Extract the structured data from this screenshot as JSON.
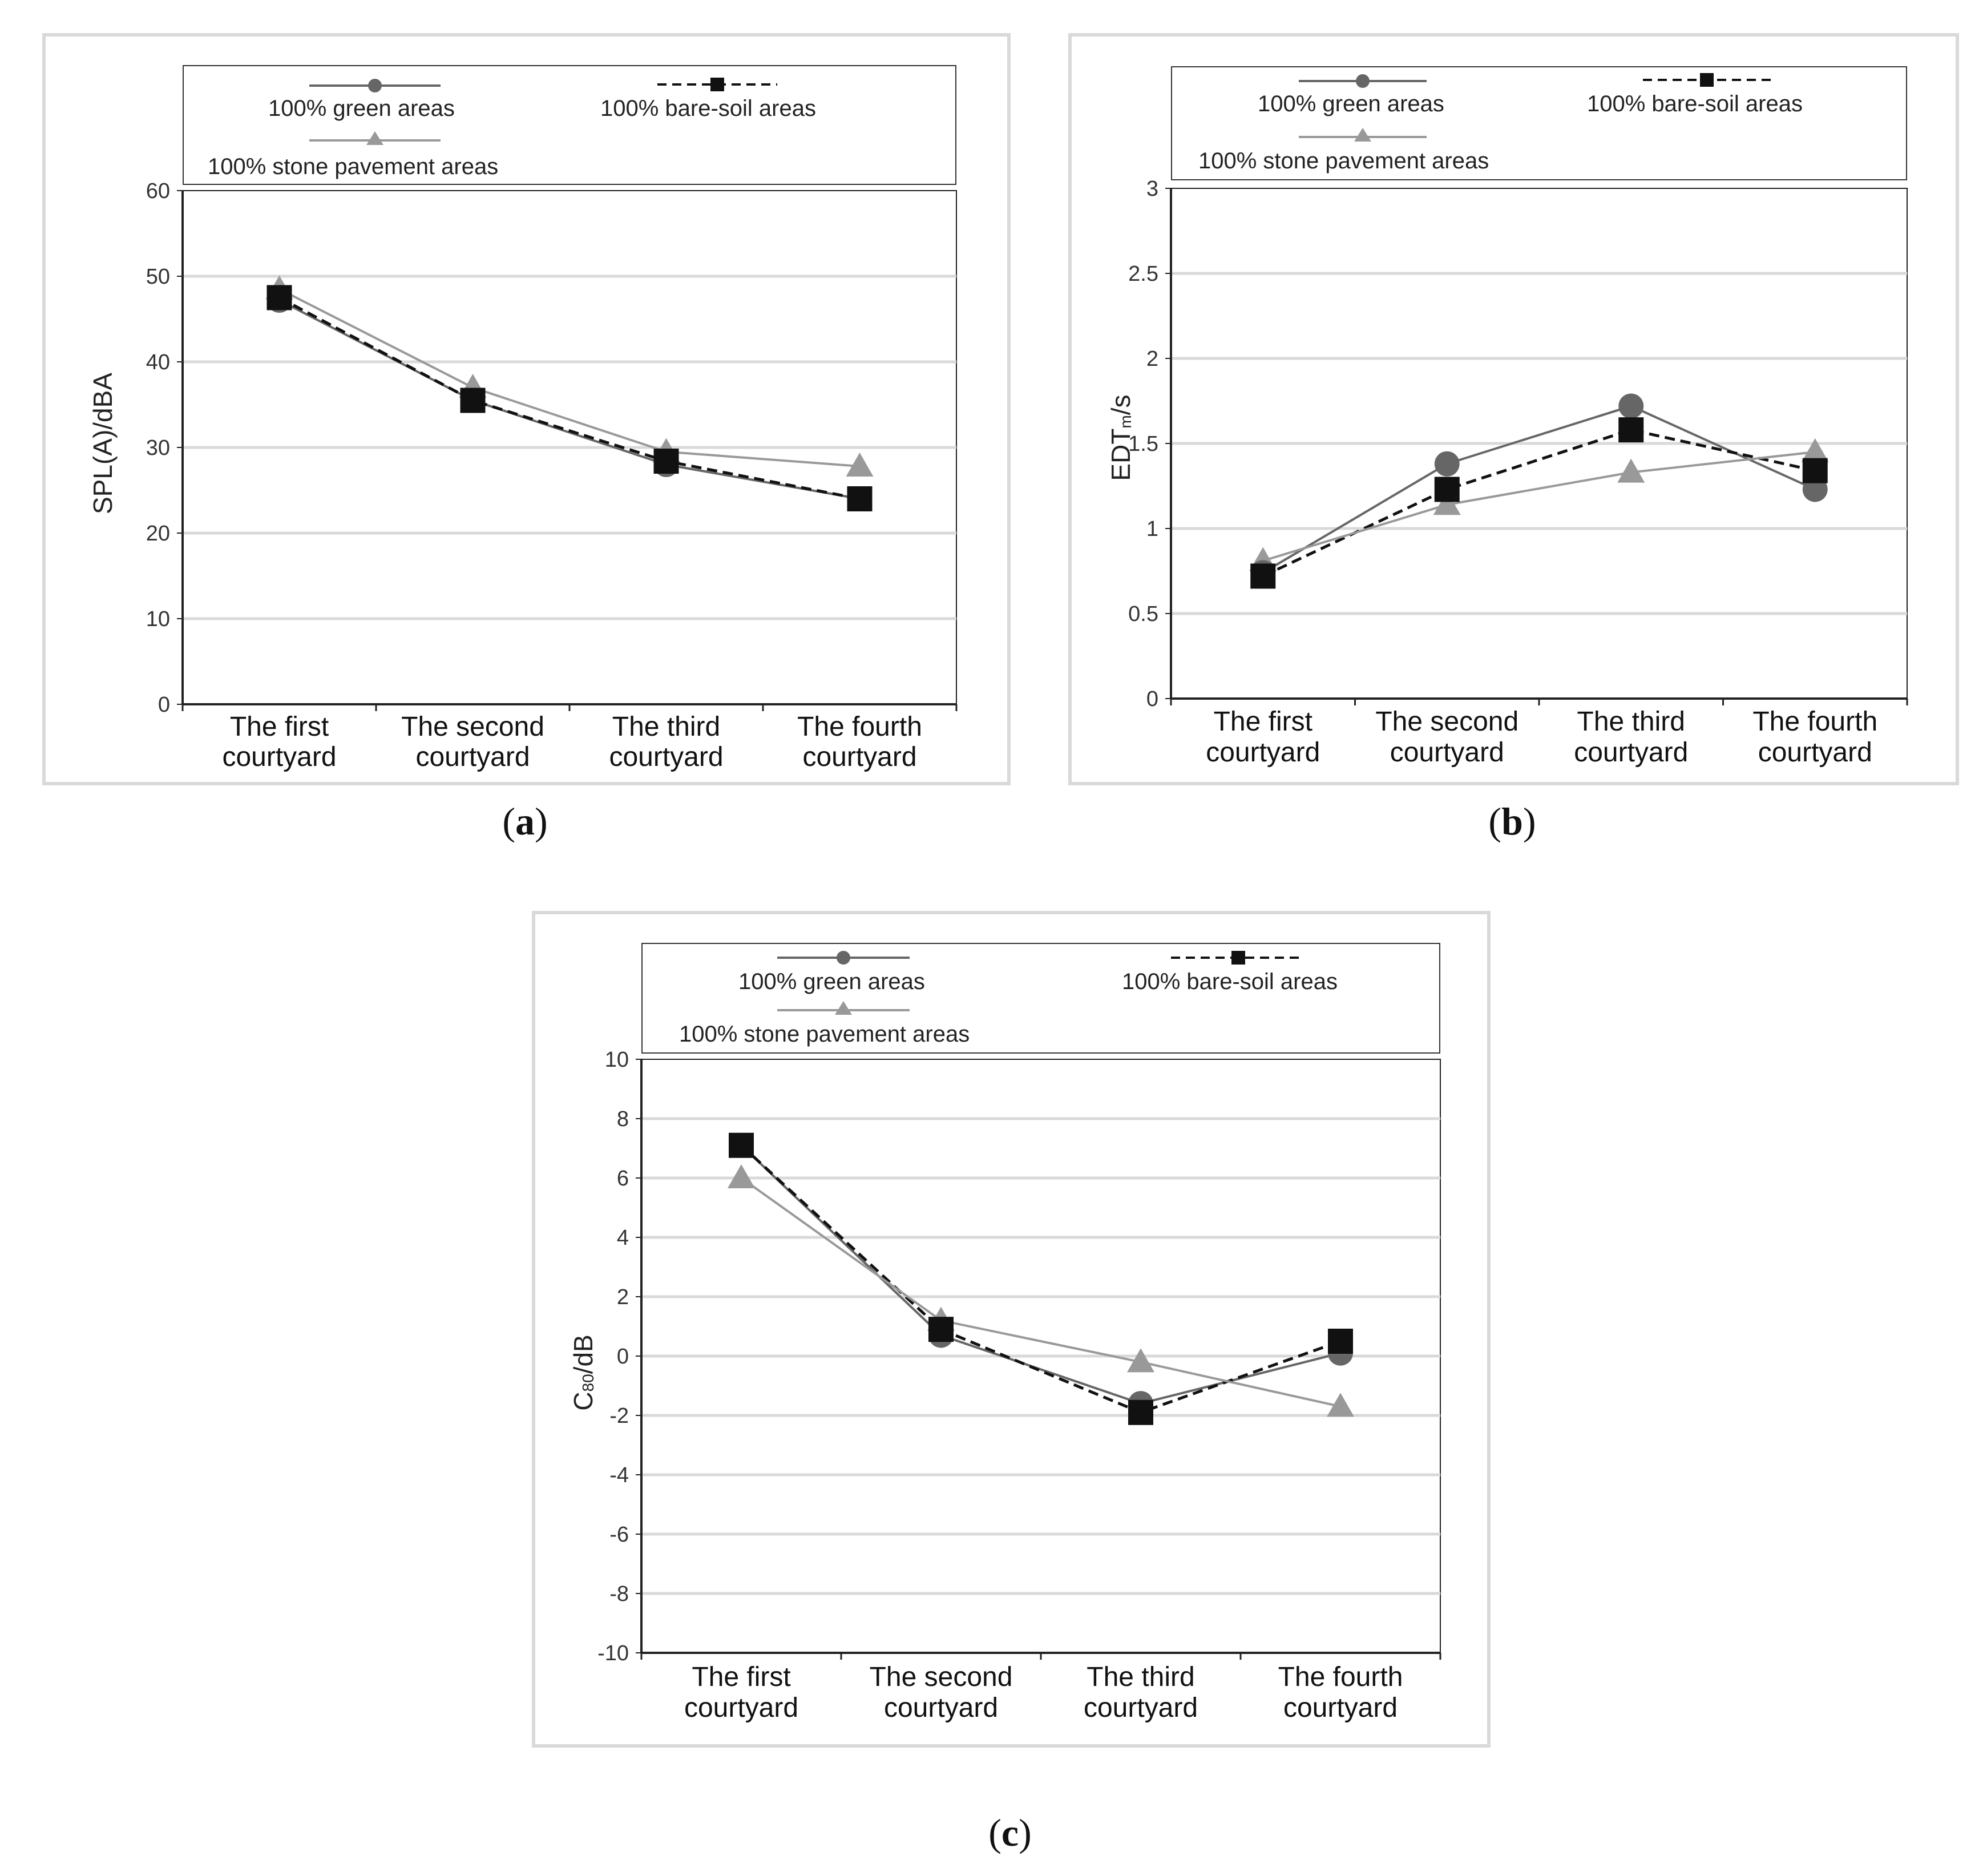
{
  "legend": {
    "green": "100% green areas",
    "bare_soil": "100% bare-soil areas",
    "stone": "100% stone pavement areas"
  },
  "colors": {
    "green": "#666666",
    "bare_soil": "#111111",
    "stone": "#999999",
    "grid": "#d9d9d9",
    "axis": "#222222"
  },
  "captions": {
    "a": "a",
    "b": "b",
    "c": "c"
  },
  "axis_titles": {
    "a": "SPL(A)/dBA",
    "b_main": "EDT",
    "b_sub": "m",
    "b_unit": "/s",
    "c_main": "C",
    "c_sub": "80",
    "c_unit": "/dB"
  },
  "chart_data": [
    {
      "id": "a",
      "type": "line",
      "categories": [
        [
          "The first",
          "courtyard"
        ],
        [
          "The second",
          "courtyard"
        ],
        [
          "The third",
          "courtyard"
        ],
        [
          "The fourth",
          "courtyard"
        ]
      ],
      "ylabel": "SPL(A)/dBA",
      "ylim": [
        0,
        60
      ],
      "yticks": [
        "0",
        "10",
        "20",
        "30",
        "40",
        "50",
        "60"
      ],
      "series": [
        {
          "name": "100% green areas",
          "key": "green",
          "marker": "circle",
          "dash": false,
          "values": [
            47.2,
            35.5,
            28.0,
            24.0
          ]
        },
        {
          "name": "100% bare-soil areas",
          "key": "bare_soil",
          "marker": "square",
          "dash": true,
          "values": [
            47.5,
            35.5,
            28.4,
            24.0
          ]
        },
        {
          "name": "100% stone pavement areas",
          "key": "stone",
          "marker": "triangle",
          "dash": false,
          "values": [
            48.5,
            37.0,
            29.5,
            27.8
          ]
        }
      ]
    },
    {
      "id": "b",
      "type": "line",
      "categories": [
        [
          "The first",
          "courtyard"
        ],
        [
          "The second",
          "courtyard"
        ],
        [
          "The third",
          "courtyard"
        ],
        [
          "The fourth",
          "courtyard"
        ]
      ],
      "ylabel": "EDTm/s",
      "ylim": [
        0,
        3
      ],
      "yticks": [
        "0",
        "0.5",
        "1",
        "1.5",
        "2",
        "2.5",
        "3"
      ],
      "series": [
        {
          "name": "100% green areas",
          "key": "green",
          "marker": "circle",
          "dash": false,
          "values": [
            0.74,
            1.38,
            1.72,
            1.23
          ]
        },
        {
          "name": "100% bare-soil areas",
          "key": "bare_soil",
          "marker": "square",
          "dash": true,
          "values": [
            0.72,
            1.23,
            1.58,
            1.34
          ]
        },
        {
          "name": "100% stone pavement areas",
          "key": "stone",
          "marker": "triangle",
          "dash": false,
          "values": [
            0.81,
            1.14,
            1.33,
            1.45
          ]
        }
      ]
    },
    {
      "id": "c",
      "type": "line",
      "categories": [
        [
          "The first",
          "courtyard"
        ],
        [
          "The second",
          "courtyard"
        ],
        [
          "The third",
          "courtyard"
        ],
        [
          "The fourth",
          "courtyard"
        ]
      ],
      "ylabel": "C80/dB",
      "ylim": [
        -10,
        10
      ],
      "yticks": [
        "-10",
        "-8",
        "-6",
        "-4",
        "-2",
        "0",
        "2",
        "4",
        "6",
        "8",
        "10"
      ],
      "series": [
        {
          "name": "100% green areas",
          "key": "green",
          "marker": "circle",
          "dash": false,
          "values": [
            7.1,
            0.7,
            -1.6,
            0.1
          ]
        },
        {
          "name": "100% bare-soil areas",
          "key": "bare_soil",
          "marker": "square",
          "dash": true,
          "values": [
            7.1,
            0.9,
            -1.9,
            0.5
          ]
        },
        {
          "name": "100% stone pavement areas",
          "key": "stone",
          "marker": "triangle",
          "dash": false,
          "values": [
            6.0,
            1.2,
            -0.2,
            -1.7
          ]
        }
      ]
    }
  ]
}
